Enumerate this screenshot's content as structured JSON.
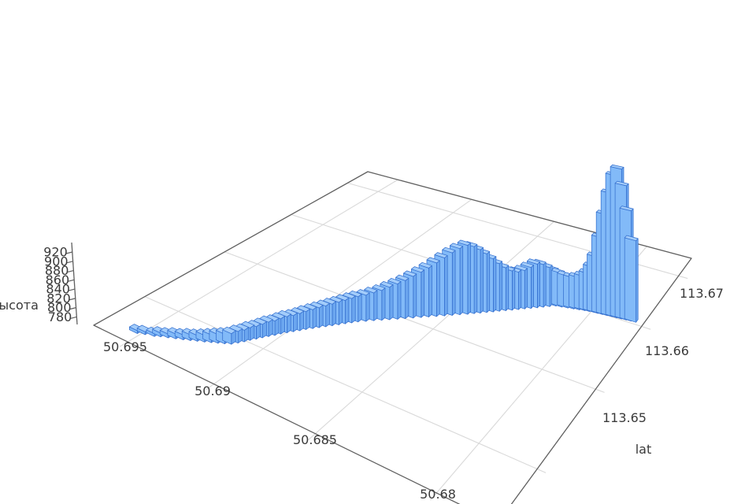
{
  "figure": {
    "background": "#ffffff",
    "kind": "3d-bar-chart-elevation-track"
  },
  "chart_data": {
    "type": "bar",
    "subtype": "bar3d-perspective",
    "title": "",
    "zlabel": "высота",
    "right_axis_label": "lat",
    "z_axis": {
      "label": "высота",
      "tick_labels": [
        "920",
        "900",
        "880",
        "860",
        "840",
        "820",
        "800",
        "780"
      ],
      "tick_values": [
        920,
        900,
        880,
        860,
        840,
        820,
        800,
        780
      ]
    },
    "bottom_axis": {
      "tick_labels": [
        "50.695",
        "50.69",
        "50.685",
        "50.68"
      ],
      "tick_values": [
        50.695,
        50.69,
        50.685,
        50.68
      ]
    },
    "right_axis": {
      "label": "lat",
      "tick_labels": [
        "113.67",
        "113.66",
        "113.65"
      ],
      "tick_values": [
        113.67,
        113.66,
        113.65
      ],
      "grid_values": [
        113.64,
        113.65,
        113.66,
        113.67
      ]
    },
    "lat_range": [
      50.6778,
      50.6972
    ],
    "lon_range": [
      113.6345,
      113.674
    ],
    "zlim": [
      775,
      940
    ],
    "z_base": 775,
    "bar_size": {
      "dlat": 0.0005,
      "dlon": 0.0005
    },
    "grid_on": true,
    "bars": [
      [
        50.6954,
        113.636,
        778
      ],
      [
        50.69506,
        113.63625,
        778
      ],
      [
        50.69463,
        113.6365,
        778
      ],
      [
        50.69439,
        113.63675,
        779
      ],
      [
        50.69407,
        113.637,
        779
      ],
      [
        50.69375,
        113.63725,
        780
      ],
      [
        50.69344,
        113.6375,
        780
      ],
      [
        50.69315,
        113.63775,
        781
      ],
      [
        50.69287,
        113.638,
        781
      ],
      [
        50.69258,
        113.63825,
        782
      ],
      [
        50.69232,
        113.6385,
        783
      ],
      [
        50.69206,
        113.63875,
        784
      ],
      [
        50.6918,
        113.639,
        785
      ],
      [
        50.69155,
        113.63925,
        786
      ],
      [
        50.69138,
        113.63967,
        787
      ],
      [
        50.69123,
        113.64009,
        787
      ],
      [
        50.6911,
        113.6405,
        788
      ],
      [
        50.69095,
        113.64092,
        788
      ],
      [
        50.6908,
        113.64134,
        789
      ],
      [
        50.69065,
        113.64176,
        790
      ],
      [
        50.69049,
        113.64218,
        790
      ],
      [
        50.69035,
        113.6426,
        791
      ],
      [
        50.69019,
        113.64301,
        792
      ],
      [
        50.69002,
        113.64343,
        792
      ],
      [
        50.68984,
        113.64385,
        793
      ],
      [
        50.68968,
        113.64427,
        794
      ],
      [
        50.68949,
        113.64469,
        795
      ],
      [
        50.68931,
        113.64511,
        796
      ],
      [
        50.68912,
        113.64552,
        797
      ],
      [
        50.68894,
        113.64594,
        798
      ],
      [
        50.68875,
        113.64636,
        799
      ],
      [
        50.68857,
        113.64678,
        800
      ],
      [
        50.68838,
        113.6472,
        801
      ],
      [
        50.6882,
        113.64762,
        802
      ],
      [
        50.68794,
        113.64806,
        803
      ],
      [
        50.68769,
        113.6485,
        805
      ],
      [
        50.68743,
        113.64894,
        807
      ],
      [
        50.68717,
        113.64938,
        810
      ],
      [
        50.68691,
        113.64982,
        813
      ],
      [
        50.68666,
        113.65027,
        816
      ],
      [
        50.6864,
        113.65071,
        820
      ],
      [
        50.68614,
        113.65115,
        824
      ],
      [
        50.68589,
        113.65159,
        828
      ],
      [
        50.68563,
        113.65203,
        833
      ],
      [
        50.68537,
        113.65247,
        838
      ],
      [
        50.68511,
        113.65291,
        843
      ],
      [
        50.68486,
        113.65336,
        847
      ],
      [
        50.6846,
        113.6538,
        850
      ],
      [
        50.68439,
        113.65419,
        848
      ],
      [
        50.68419,
        113.65457,
        844
      ],
      [
        50.68398,
        113.65496,
        839
      ],
      [
        50.68377,
        113.65535,
        833
      ],
      [
        50.68357,
        113.65573,
        827
      ],
      [
        50.68336,
        113.65612,
        822
      ],
      [
        50.68315,
        113.6565,
        818
      ],
      [
        50.68294,
        113.65689,
        816
      ],
      [
        50.68274,
        113.65728,
        817
      ],
      [
        50.68253,
        113.65766,
        820
      ],
      [
        50.68232,
        113.65805,
        823
      ],
      [
        50.68212,
        113.65843,
        822
      ],
      [
        50.68191,
        113.65882,
        818
      ],
      [
        50.6817,
        113.6592,
        814
      ],
      [
        50.68145,
        113.65934,
        812
      ],
      [
        50.6812,
        113.65948,
        810
      ],
      [
        50.68095,
        113.65963,
        809
      ],
      [
        50.68072,
        113.65977,
        810
      ],
      [
        50.6805,
        113.65991,
        812
      ],
      [
        50.6803,
        113.66,
        816
      ],
      [
        50.68012,
        113.66008,
        824
      ],
      [
        50.67995,
        113.66012,
        836
      ],
      [
        50.67975,
        113.66018,
        858
      ],
      [
        50.67955,
        113.66024,
        884
      ],
      [
        50.67935,
        113.6603,
        908
      ],
      [
        50.67915,
        113.66036,
        928
      ],
      [
        50.67895,
        113.66042,
        936
      ],
      [
        50.67875,
        113.66048,
        919
      ],
      [
        50.67855,
        113.66054,
        893
      ],
      [
        50.67835,
        113.6606,
        862
      ]
    ]
  },
  "colors": {
    "bar_front_face": "#82baf8",
    "bar_side_face": "#6ba6ef",
    "bar_top_face": "#a2ccfa",
    "bar_edge": "#3570cf",
    "grid_line": "#d9d9d9",
    "pane_edge": "#5f5f5f",
    "tick_text": "#3a3a3a"
  }
}
